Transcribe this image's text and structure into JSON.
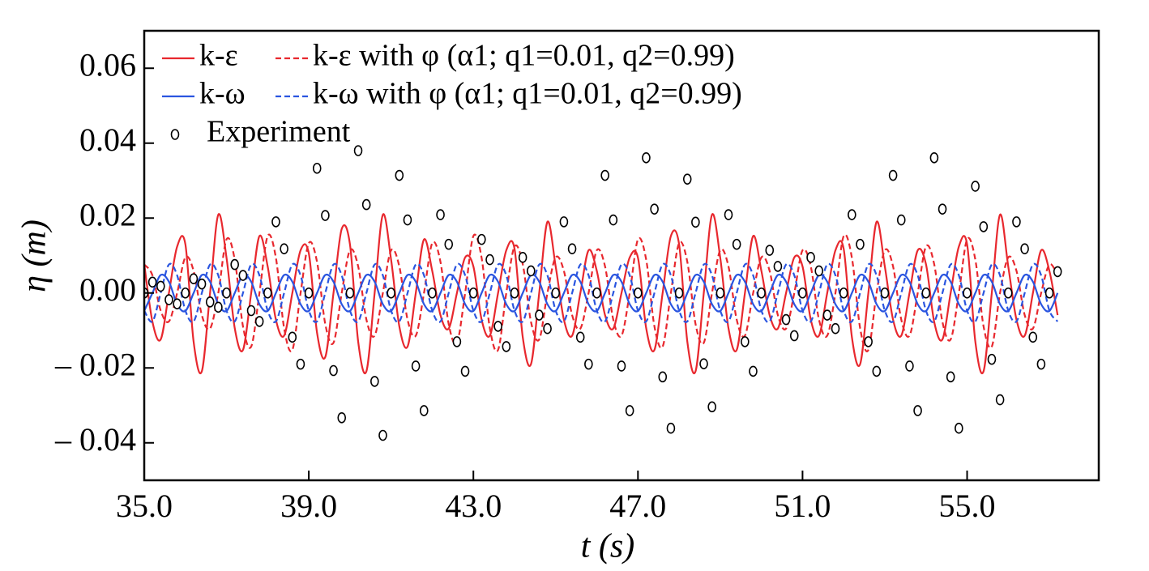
{
  "chart_data": {
    "type": "line",
    "xlabel": "t (s)",
    "ylabel": "η (m)",
    "xlim": [
      35,
      58.2
    ],
    "ylim": [
      -0.05,
      0.07
    ],
    "xticks": [
      {
        "value": 35,
        "label": "35.0"
      },
      {
        "value": 39,
        "label": "39.0"
      },
      {
        "value": 43,
        "label": "43.0"
      },
      {
        "value": 47,
        "label": "47.0"
      },
      {
        "value": 51,
        "label": "51.0"
      },
      {
        "value": 55,
        "label": "55.0"
      }
    ],
    "yticks": [
      {
        "value": -0.04,
        "label": "– 0.04"
      },
      {
        "value": -0.02,
        "label": "– 0.02"
      },
      {
        "value": 0,
        "label": "0.00"
      },
      0.02,
      0.04,
      0.06
    ],
    "legend": "upper left",
    "x": [
      35,
      35.2,
      35.4,
      35.6,
      35.8,
      36,
      36.2,
      36.4,
      36.6,
      36.8,
      37,
      37.2,
      37.4,
      37.6,
      37.8,
      38,
      38.2,
      38.4,
      38.6,
      38.8,
      39,
      39.2,
      39.4,
      39.6,
      39.8,
      40,
      40.2,
      40.4,
      40.6,
      40.8,
      41,
      41.2,
      41.4,
      41.6,
      41.8,
      42,
      42.2,
      42.4,
      42.6,
      42.8,
      43,
      43.2,
      43.4,
      43.6,
      43.8,
      44,
      44.2,
      44.4,
      44.6,
      44.8,
      45,
      45.2,
      45.4,
      45.6,
      45.8,
      46,
      46.2,
      46.4,
      46.6,
      46.8,
      47,
      47.2,
      47.4,
      47.6,
      47.8,
      48,
      48.2,
      48.4,
      48.6,
      48.8,
      49,
      49.2,
      49.4,
      49.6,
      49.8,
      50,
      50.2,
      50.4,
      50.6,
      50.8,
      51,
      51.2,
      51.4,
      51.6,
      51.8,
      52,
      52.2,
      52.4,
      52.6,
      52.8,
      53,
      53.2,
      53.4,
      53.6,
      53.8,
      54,
      54.2,
      54.4,
      54.6,
      54.8,
      55,
      55.2,
      55.4,
      55.6,
      55.8,
      56,
      56.2,
      56.4,
      56.6,
      56.8,
      57,
      57.2
    ],
    "series": [
      {
        "name": "k-ε",
        "color": "#e8282e",
        "style": "solid",
        "values": [
          0.0077,
          -0.0077,
          -0.0124,
          0,
          0.0124,
          0.013,
          -0.013,
          -0.0209,
          0,
          0.0209,
          0.0094,
          -0.0094,
          -0.0152,
          0,
          0.0152,
          0.0071,
          -0.0071,
          -0.0114,
          0,
          0.0114,
          0.0106,
          -0.0106,
          -0.0171,
          0,
          0.0171,
          0.013,
          -0.013,
          -0.0209,
          0,
          0.0209,
          0.0089,
          -0.0089,
          -0.0143,
          0,
          0.0143,
          0.0059,
          -0.0059,
          -0.0095,
          0,
          0.0095,
          0.0071,
          -0.0071,
          -0.0114,
          0,
          0.0114,
          0.0118,
          -0.0118,
          -0.019,
          0,
          0.019,
          0.0071,
          -0.0071,
          -0.0114,
          0,
          0.0114,
          0.0059,
          -0.0059,
          -0.0095,
          0,
          0.0095,
          0.0094,
          -0.0094,
          -0.0152,
          0,
          0.0152,
          0.013,
          -0.013,
          -0.0209,
          0,
          0.0209,
          0.0094,
          -0.0094,
          -0.0152,
          0,
          0.0152,
          0.0059,
          -0.0059,
          -0.0095,
          0,
          0.0095,
          0.0071,
          -0.0071,
          -0.0114,
          0,
          0.0114,
          0.0118,
          -0.0118,
          -0.019,
          0,
          0.019,
          0.0071,
          -0.0071,
          -0.0114,
          0,
          0.0114,
          0.0077,
          -0.0077,
          -0.0124,
          0,
          0.0124,
          0.013,
          -0.013,
          -0.0209,
          0,
          0.0209,
          0.0071,
          -0.0071,
          -0.0114,
          0,
          0.0114,
          0.0059,
          -0.0059
        ]
      },
      {
        "name": "k-ε with φ (α1; q1=0.01, q2=0.99)",
        "color": "#e8282e",
        "style": "dashed",
        "values": [
          0.0076,
          0.0047,
          -0.0047,
          -0.0076,
          0,
          0.0095,
          0.0059,
          -0.0059,
          -0.0095,
          0,
          0.0143,
          0.0089,
          -0.0089,
          -0.0143,
          0,
          0.0152,
          0.0094,
          -0.0094,
          -0.0152,
          0,
          0.0133,
          0.0083,
          -0.0083,
          -0.0133,
          0,
          0.0114,
          0.0071,
          -0.0071,
          -0.0114,
          0,
          0.0114,
          0.0071,
          -0.0071,
          -0.0114,
          0,
          0.0133,
          0.0083,
          -0.0083,
          -0.0133,
          0,
          0.0152,
          0.0094,
          -0.0094,
          -0.0152,
          0,
          0.0124,
          0.0077,
          -0.0077,
          -0.0124,
          0,
          0.0095,
          0.0059,
          -0.0059,
          -0.0095,
          0,
          0.0114,
          0.0071,
          -0.0071,
          -0.0114,
          0,
          0.0143,
          0.0089,
          -0.0089,
          -0.0143,
          0,
          0.0133,
          0.0083,
          -0.0083,
          -0.0133,
          0,
          0.0114,
          0.0071,
          -0.0071,
          -0.0114,
          0,
          0.0095,
          0.0059,
          -0.0059,
          -0.0095,
          0,
          0.0114,
          0.0071,
          -0.0071,
          -0.0114,
          0,
          0.0152,
          0.0094,
          -0.0094,
          -0.0152,
          0,
          0.0114,
          0.0071,
          -0.0071,
          -0.0114,
          0,
          0.0124,
          0.0077,
          -0.0077,
          -0.0124,
          0,
          0.0143,
          0.0089,
          -0.0089,
          -0.0143,
          0,
          0.0095,
          0.0059,
          -0.0059,
          -0.0095,
          0,
          0.0076,
          0.0047
        ]
      },
      {
        "name": "k-ω",
        "color": "#2a55e0",
        "style": "solid",
        "values": [
          -0.0048,
          0,
          0.0048,
          0.003,
          -0.003,
          -0.0048,
          0,
          0.0048,
          0.003,
          -0.003,
          -0.0048,
          0,
          0.0048,
          0.003,
          -0.003,
          -0.0048,
          0,
          0.0048,
          0.003,
          -0.003,
          -0.0048,
          0,
          0.0048,
          0.003,
          -0.003,
          -0.0048,
          0,
          0.0048,
          0.003,
          -0.003,
          -0.0048,
          0,
          0.0048,
          0.003,
          -0.003,
          -0.0048,
          0,
          0.0048,
          0.003,
          -0.003,
          -0.0048,
          0,
          0.0048,
          0.003,
          -0.003,
          -0.0048,
          0,
          0.0048,
          0.003,
          -0.003,
          -0.0048,
          0,
          0.0048,
          0.003,
          -0.003,
          -0.0048,
          0,
          0.0048,
          0.003,
          -0.003,
          -0.0048,
          0,
          0.0048,
          0.003,
          -0.003,
          -0.0048,
          0,
          0.0048,
          0.003,
          -0.003,
          -0.0048,
          0,
          0.0048,
          0.003,
          -0.003,
          -0.0048,
          0,
          0.0048,
          0.003,
          -0.003,
          -0.0048,
          0,
          0.0048,
          0.003,
          -0.003,
          -0.0048,
          0,
          0.0048,
          0.003,
          -0.003,
          -0.0048,
          0,
          0.0048,
          0.003,
          -0.003,
          -0.0048,
          0,
          0.0048,
          0.003,
          -0.003,
          -0.0048,
          0,
          0.0048,
          0.003,
          -0.003,
          -0.0048,
          0,
          0.0048,
          0.003,
          -0.003,
          -0.0048,
          0
        ]
      },
      {
        "name": "k-ω with φ (α1; q1=0.01, q2=0.99)",
        "color": "#2a55e0",
        "style": "dashed",
        "values": [
          -0.0047,
          -0.0076,
          0,
          0.0076,
          0.0047,
          -0.0047,
          -0.0076,
          0,
          0.0076,
          0.0047,
          -0.0047,
          -0.0076,
          0,
          0.0076,
          0.0047,
          -0.0047,
          -0.0076,
          0,
          0.0076,
          0.0047,
          -0.0047,
          -0.0076,
          0,
          0.0076,
          0.0047,
          -0.0047,
          -0.0076,
          0,
          0.0076,
          0.0047,
          -0.0047,
          -0.0076,
          0,
          0.0076,
          0.0047,
          -0.0047,
          -0.0076,
          0,
          0.0076,
          0.0047,
          -0.0047,
          -0.0076,
          0,
          0.0076,
          0.0047,
          -0.0047,
          -0.0076,
          0,
          0.0076,
          0.0047,
          -0.0047,
          -0.0076,
          0,
          0.0076,
          0.0047,
          -0.0047,
          -0.0076,
          0,
          0.0076,
          0.0047,
          -0.0047,
          -0.0076,
          0,
          0.0076,
          0.0047,
          -0.0047,
          -0.0076,
          0,
          0.0076,
          0.0047,
          -0.0047,
          -0.0076,
          0,
          0.0076,
          0.0047,
          -0.0047,
          -0.0076,
          0,
          0.0076,
          0.0047,
          -0.0047,
          -0.0076,
          0,
          0.0076,
          0.0047,
          -0.0047,
          -0.0076,
          0,
          0.0076,
          0.0047,
          -0.0047,
          -0.0076,
          0,
          0.0076,
          0.0047,
          -0.0047,
          -0.0076,
          0,
          0.0076,
          0.0047,
          -0.0047,
          -0.0076,
          0,
          0.0076,
          0.0047,
          -0.0047,
          -0.0076,
          0,
          0.0076,
          0.0047,
          -0.0047,
          -0.0076
        ]
      },
      {
        "name": "Experiment",
        "color": "#000000",
        "style": "marker",
        "values": [
          0,
          0.0029,
          0.0018,
          -0.0018,
          -0.0029,
          0,
          0.0038,
          0.0024,
          -0.0024,
          -0.0038,
          0,
          0.0076,
          0.0047,
          -0.0047,
          -0.0076,
          0,
          0.019,
          0.0118,
          -0.0118,
          -0.019,
          0,
          0.0333,
          0.0207,
          -0.0207,
          -0.0333,
          0,
          0.038,
          0.0236,
          -0.0236,
          -0.038,
          0,
          0.0314,
          0.0195,
          -0.0195,
          -0.0314,
          0,
          0.0209,
          0.013,
          -0.013,
          -0.0209,
          0,
          0.0143,
          0.0089,
          -0.0089,
          -0.0143,
          0,
          0.0095,
          0.0059,
          -0.0059,
          -0.0095,
          0,
          0.019,
          0.0118,
          -0.0118,
          -0.019,
          0,
          0.0314,
          0.0195,
          -0.0195,
          -0.0314,
          0,
          0.0361,
          0.0224,
          -0.0224,
          -0.0361,
          0,
          0.0304,
          0.0189,
          -0.0189,
          -0.0304,
          0,
          0.0209,
          0.013,
          -0.013,
          -0.0209,
          0,
          0.0114,
          0.0071,
          -0.0071,
          -0.0114,
          0,
          0.0095,
          0.0059,
          -0.0059,
          -0.0095,
          0,
          0.0209,
          0.013,
          -0.013,
          -0.0209,
          0,
          0.0314,
          0.0195,
          -0.0195,
          -0.0314,
          0,
          0.0361,
          0.0224,
          -0.0224,
          -0.0361,
          0,
          0.0285,
          0.0177,
          -0.0177,
          -0.0285,
          0,
          0.019,
          0.0118,
          -0.0118,
          -0.019,
          0,
          0.0057
        ]
      }
    ]
  }
}
